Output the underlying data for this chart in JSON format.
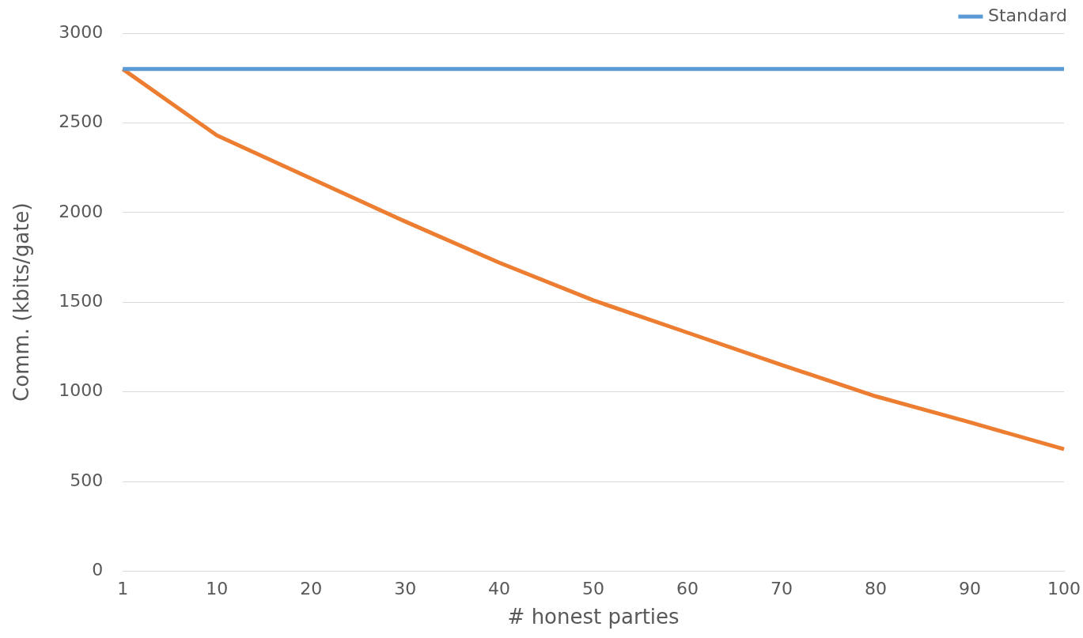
{
  "chart_data": {
    "type": "line",
    "xlabel": "# honest parties",
    "ylabel": "Comm. (kbits/gate)",
    "categories": [
      "1",
      "10",
      "20",
      "30",
      "40",
      "50",
      "60",
      "70",
      "80",
      "90",
      "100"
    ],
    "series": [
      {
        "name": "Standard",
        "color": "#5b9bd5",
        "values": [
          2800,
          2800,
          2800,
          2800,
          2800,
          2800,
          2800,
          2800,
          2800,
          2800,
          2800
        ]
      },
      {
        "color": "#ed7d31",
        "values": [
          2800,
          2430,
          2190,
          1950,
          1720,
          1510,
          1330,
          1150,
          975,
          830,
          680
        ]
      }
    ],
    "ylim": [
      0,
      3000
    ],
    "yticks": [
      0,
      500,
      1000,
      1500,
      2000,
      2500,
      3000
    ],
    "grid": "y",
    "legend": "top right"
  }
}
